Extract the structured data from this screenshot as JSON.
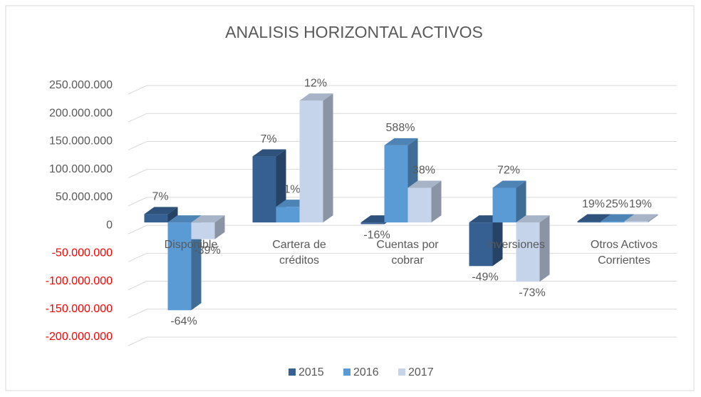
{
  "chart_data": {
    "type": "bar3d",
    "title": "ANALISIS HORIZONTAL ACTIVOS",
    "categories": [
      "Disponible",
      "Cartera de créditos",
      "Cuentas por cobrar",
      "Inversiones",
      "Otros Activos Corrientes"
    ],
    "series": [
      {
        "name": "2015",
        "color": "#366092",
        "values": [
          15000000,
          118000000,
          -3000000,
          -78000000,
          2000000
        ],
        "percent_labels": [
          "7%",
          "7%",
          "-16%",
          "-49%",
          "19%"
        ]
      },
      {
        "name": "2016",
        "color": "#5b9bd5",
        "values": [
          -157000000,
          28000000,
          138000000,
          62000000,
          2000000
        ],
        "percent_labels": [
          "-64%",
          "1%",
          "588%",
          "72%",
          "25%"
        ]
      },
      {
        "name": "2017",
        "color": "#c5d4ea",
        "values": [
          -30000000,
          218000000,
          62000000,
          -106000000,
          2000000
        ],
        "percent_labels": [
          "-39%",
          "12%",
          "38%",
          "-73%",
          "19%"
        ]
      }
    ],
    "ylim": [
      -200000000,
      250000000
    ],
    "yticks": [
      {
        "value": -200000000,
        "label": "-200.000.000"
      },
      {
        "value": -150000000,
        "label": "-150.000.000"
      },
      {
        "value": -100000000,
        "label": "-100.000.000"
      },
      {
        "value": -50000000,
        "label": "-50.000.000"
      },
      0,
      {
        "value": 50000000,
        "label": "50.000.000"
      },
      {
        "value": 100000000,
        "label": "100.000.000"
      },
      {
        "value": 150000000,
        "label": "150.000.000"
      },
      {
        "value": 200000000,
        "label": "200.000.000"
      },
      {
        "value": 250000000,
        "label": "250.000.000"
      }
    ],
    "negative_tick_color": "#ff0000",
    "grid": true,
    "legend": "bottom"
  }
}
